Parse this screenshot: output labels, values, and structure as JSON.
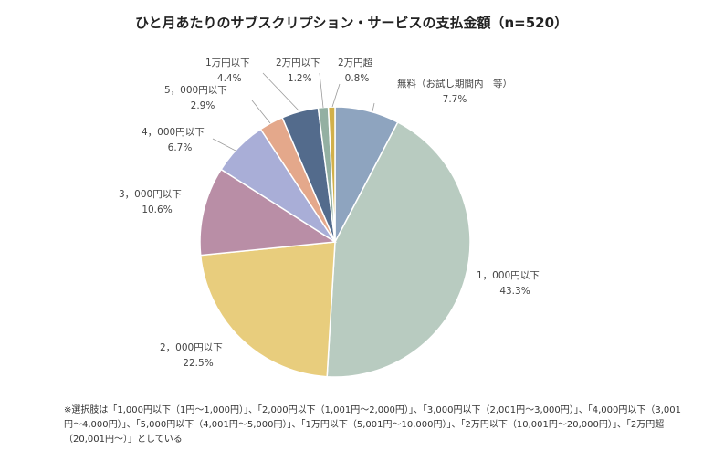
{
  "chart_data": {
    "type": "pie",
    "title": "ひと月あたりのサブスクリプション・サービスの支払金額（n=520）",
    "slices": [
      {
        "label": "無料（お試し期間内　等）",
        "value": 7.7,
        "value_label": "7.7%",
        "color": "#8ea4bf"
      },
      {
        "label": "1，000円以下",
        "value": 43.3,
        "value_label": "43.3%",
        "color": "#b8cbc0"
      },
      {
        "label": "2，000円以下",
        "value": 22.5,
        "value_label": "22.5%",
        "color": "#e8cd7d"
      },
      {
        "label": "3，000円以下",
        "value": 10.6,
        "value_label": "10.6%",
        "color": "#b98ea6"
      },
      {
        "label": "4，000円以下",
        "value": 6.7,
        "value_label": "6.7%",
        "color": "#a9aed7"
      },
      {
        "label": "5，000円以下",
        "value": 2.9,
        "value_label": "2.9%",
        "color": "#e4a88b"
      },
      {
        "label": "1万円以下",
        "value": 4.4,
        "value_label": "4.4%",
        "color": "#536b8c"
      },
      {
        "label": "2万円以下",
        "value": 1.2,
        "value_label": "1.2%",
        "color": "#93b0a2"
      },
      {
        "label": "2万円超",
        "value": 0.8,
        "value_label": "0.8%",
        "color": "#d1b04a"
      }
    ]
  },
  "footnote": "※選択肢は「1,000円以下（1円～1,000円）」、「2,000円以下（1,001円～2,000円）」、「3,000円以下（2,001円～3,000円）」、「4,000円以下（3,001円～4,000円）」、「5,000円以下（4,001円～5,000円）」、「1万円以下（5,001円～10,000円）」、「2万円以下（10,001円～20,000円）」、「2万円超（20,001円～）」としている"
}
